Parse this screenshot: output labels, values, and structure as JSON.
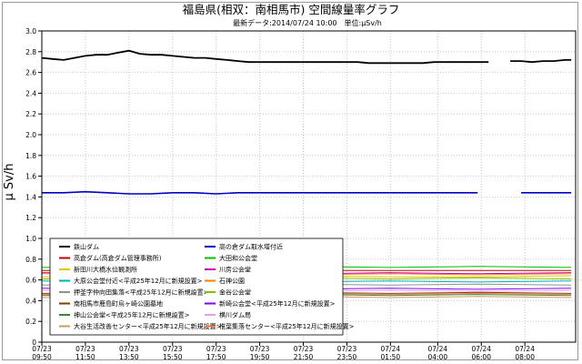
{
  "chart_data": {
    "type": "line",
    "title": "福島県(相双：南相馬市) 空間線量率グラフ",
    "subtitle": "最新データ:2014/07/24 10:00　単位:μSv/h",
    "ylabel": "μ Sv/h",
    "xlabel": "",
    "ylim": [
      0,
      3.0
    ],
    "yticks": [
      "0",
      "0.2",
      "0.4",
      "0.6",
      "0.8",
      "1.0",
      "1.2",
      "1.4",
      "1.6",
      "1.8",
      "2.0",
      "2.2",
      "2.4",
      "2.6",
      "2.8",
      "3.0"
    ],
    "xlim_hours": [
      0,
      24.5
    ],
    "x_ticks": [
      {
        "date": "07/23",
        "time": "09:50",
        "hour": 0
      },
      {
        "date": "07/23",
        "time": "11:50",
        "hour": 2
      },
      {
        "date": "07/23",
        "time": "13:50",
        "hour": 4
      },
      {
        "date": "07/23",
        "time": "15:50",
        "hour": 6
      },
      {
        "date": "07/23",
        "time": "17:50",
        "hour": 8
      },
      {
        "date": "07/23",
        "time": "19:50",
        "hour": 10
      },
      {
        "date": "07/23",
        "time": "21:50",
        "hour": 12
      },
      {
        "date": "07/23",
        "time": "23:50",
        "hour": 14
      },
      {
        "date": "07/24",
        "time": "01:50",
        "hour": 16
      },
      {
        "date": "07/24",
        "time": "04:00",
        "hour": 18.17
      },
      {
        "date": "07/24",
        "time": "06:00",
        "hour": 20.17
      },
      {
        "date": "07/24",
        "time": "08:00",
        "hour": 22.17
      }
    ],
    "grid": true,
    "legend_position": "bottom-left",
    "series": [
      {
        "name": "鉄山ダム",
        "color": "#000000",
        "width": 1.8,
        "x": [
          0,
          0.5,
          1,
          1.5,
          2,
          2.5,
          3,
          3.5,
          4,
          4.5,
          5,
          5.5,
          6,
          6.5,
          7,
          7.5,
          8,
          8.5,
          9,
          9.5,
          10,
          10.5,
          11,
          11.5,
          12,
          12.5,
          13,
          13.5,
          14,
          14.5,
          15,
          15.5,
          16,
          16.5,
          17,
          17.5,
          18,
          18.5,
          19,
          19.5,
          20,
          20.5,
          21,
          21.5,
          22,
          22.5,
          23,
          23.5,
          24,
          24.3
        ],
        "y": [
          2.74,
          2.73,
          2.72,
          2.74,
          2.76,
          2.77,
          2.77,
          2.79,
          2.81,
          2.78,
          2.77,
          2.77,
          2.76,
          2.75,
          2.74,
          2.74,
          2.73,
          2.72,
          2.71,
          2.7,
          2.7,
          2.7,
          2.7,
          2.7,
          2.7,
          2.7,
          2.7,
          2.7,
          2.7,
          2.7,
          2.69,
          2.69,
          2.69,
          2.69,
          2.69,
          2.69,
          2.7,
          2.7,
          2.7,
          2.7,
          2.7,
          2.7,
          null,
          2.71,
          2.71,
          2.7,
          2.71,
          2.71,
          2.72,
          2.72
        ]
      },
      {
        "name": "高倉ダム(高倉ダム管理事務所)",
        "color": "#c00000",
        "width": 1,
        "x": [
          0,
          4,
          8,
          12,
          16,
          20,
          24.3
        ],
        "y": [
          0.69,
          0.69,
          0.69,
          0.69,
          0.69,
          0.69,
          0.69
        ]
      },
      {
        "name": "新田川大橋水位観測所",
        "color": "#d8c800",
        "width": 1,
        "x": [
          0,
          4,
          8,
          12,
          16,
          20,
          24.3
        ],
        "y": [
          0.63,
          0.64,
          0.63,
          0.64,
          0.63,
          0.63,
          0.64
        ]
      },
      {
        "name": "大原公会堂付近<平成25年12月に新規設置>",
        "color": "#00b0b0",
        "width": 1,
        "x": [
          0,
          4,
          8,
          12,
          16,
          20,
          24.3
        ],
        "y": [
          0.59,
          0.58,
          0.6,
          0.58,
          0.59,
          0.58,
          0.59
        ]
      },
      {
        "name": "押釜字仲向田集落<平成25年12月に新規設置>",
        "color": "#909090",
        "width": 1,
        "x": [
          0,
          4,
          8,
          12,
          16,
          20,
          24.3
        ],
        "y": [
          0.55,
          0.56,
          0.55,
          0.56,
          0.55,
          0.56,
          0.55
        ]
      },
      {
        "name": "南相馬市鹿島町烏ヶ崎公園墓地",
        "color": "#804000",
        "width": 1,
        "x": [
          0,
          4,
          8,
          12,
          16,
          20,
          24.3
        ],
        "y": [
          0.47,
          0.48,
          0.47,
          0.48,
          0.47,
          0.48,
          0.47
        ]
      },
      {
        "name": "神山公会堂<平成25年12月に新規設置>",
        "color": "#408040",
        "width": 1,
        "x": [
          0,
          4,
          8,
          12,
          16,
          20,
          24.3
        ],
        "y": [
          0.45,
          0.46,
          0.45,
          0.46,
          0.45,
          0.46,
          0.45
        ]
      },
      {
        "name": "大谷生活改善センター<平成25年12月に新規設置>",
        "color": "#c0a060",
        "width": 1,
        "x": [
          0,
          4,
          8,
          12,
          16,
          20,
          24.3
        ],
        "y": [
          0.43,
          0.44,
          0.43,
          0.44,
          0.43,
          0.44,
          0.43
        ]
      },
      {
        "name": "高の倉ダム取水塔付近",
        "color": "#0000c0",
        "width": 1.6,
        "x": [
          0,
          1,
          2,
          3,
          4,
          5,
          6,
          7,
          8,
          9,
          10,
          11,
          12,
          13,
          14,
          15,
          16,
          17,
          18,
          19,
          20,
          21,
          22,
          23,
          24,
          24.3
        ],
        "y": [
          1.44,
          1.44,
          1.45,
          1.44,
          1.43,
          1.43,
          1.44,
          1.44,
          1.43,
          1.44,
          1.44,
          1.44,
          1.44,
          1.44,
          1.44,
          1.44,
          1.44,
          1.44,
          1.44,
          1.44,
          1.44,
          null,
          1.44,
          1.44,
          1.44,
          1.44
        ]
      },
      {
        "name": "大田和公会堂",
        "color": "#00c000",
        "width": 1,
        "x": [
          0,
          4,
          8,
          12,
          16,
          20,
          24.3
        ],
        "y": [
          0.72,
          0.73,
          0.72,
          0.73,
          0.72,
          0.73,
          0.72
        ]
      },
      {
        "name": "川房公会堂",
        "color": "#c000c0",
        "width": 1,
        "x": [
          0,
          4,
          8,
          12,
          16,
          20,
          24.3
        ],
        "y": [
          0.67,
          0.66,
          0.67,
          0.66,
          0.67,
          0.66,
          0.67
        ]
      },
      {
        "name": "石神公園",
        "color": "#ff8000",
        "width": 1,
        "x": [
          0,
          4,
          8,
          12,
          16,
          20,
          24.3
        ],
        "y": [
          0.66,
          0.65,
          0.66,
          0.65,
          0.66,
          0.65,
          0.66
        ]
      },
      {
        "name": "金谷公会堂",
        "color": "#80c000",
        "width": 1,
        "x": [
          0,
          4,
          8,
          12,
          16,
          20,
          24.3
        ],
        "y": [
          0.61,
          0.62,
          0.61,
          0.62,
          0.61,
          0.62,
          0.61
        ]
      },
      {
        "name": "新崎公会堂<平成25年12月に新規設置>",
        "color": "#8000ff",
        "width": 1,
        "x": [
          0,
          4,
          8,
          12,
          16,
          20,
          24.3
        ],
        "y": [
          0.52,
          0.51,
          0.52,
          0.51,
          0.52,
          0.51,
          0.52
        ]
      },
      {
        "name": "横川ダム局",
        "color": "#e0a0e0",
        "width": 1,
        "x": [
          0,
          4,
          8,
          12,
          16,
          20,
          24.3
        ],
        "y": [
          0.5,
          0.49,
          0.5,
          0.49,
          0.5,
          0.49,
          0.5
        ]
      },
      {
        "name": "椎葉集落センター<平成25年12月に新規設置>",
        "color": "#ff7f50",
        "width": 1,
        "x": [
          0,
          4,
          8,
          12,
          16,
          20,
          24.3
        ],
        "y": [
          0.46,
          0.47,
          0.46,
          0.47,
          0.46,
          0.47,
          0.46
        ]
      }
    ]
  }
}
